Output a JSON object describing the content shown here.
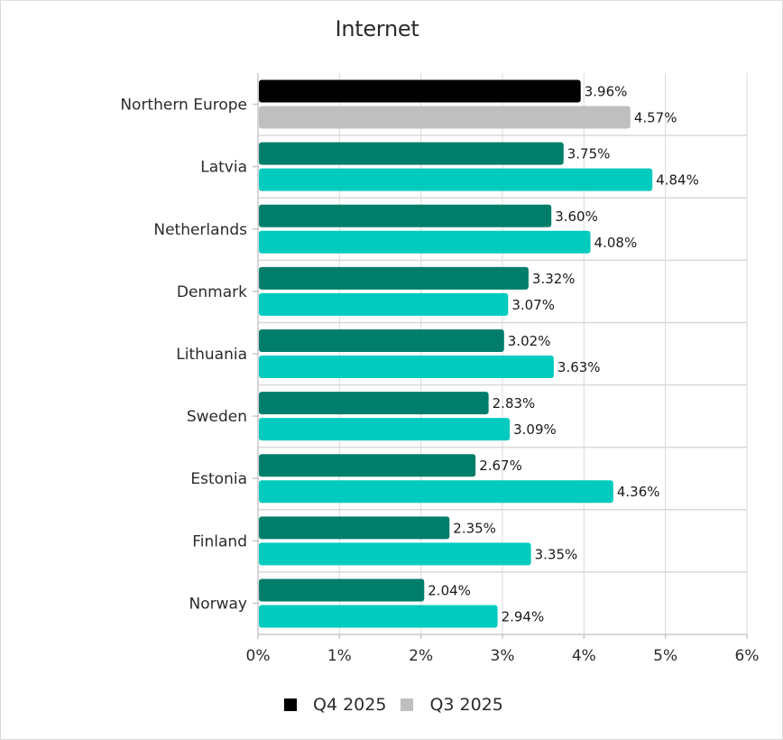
{
  "chart_data": {
    "type": "bar",
    "orientation": "horizontal",
    "title": "Internet",
    "xlabel": "",
    "ylabel": "",
    "xlim": [
      0,
      6
    ],
    "x_ticks": [
      "0%",
      "1%",
      "2%",
      "3%",
      "4%",
      "5%",
      "6%"
    ],
    "grid": true,
    "legend_position": "bottom",
    "categories": [
      "Northern Europe",
      "Latvia",
      "Netherlands",
      "Denmark",
      "Lithuania",
      "Sweden",
      "Estonia",
      "Finland",
      "Norway"
    ],
    "series": [
      {
        "name": "Q4 2025",
        "values": [
          3.96,
          3.75,
          3.6,
          3.32,
          3.02,
          2.83,
          2.67,
          2.35,
          2.04
        ],
        "labels": [
          "3.96%",
          "3.75%",
          "3.60%",
          "3.32%",
          "3.02%",
          "2.83%",
          "2.67%",
          "2.35%",
          "2.04%"
        ]
      },
      {
        "name": "Q3 2025",
        "values": [
          4.57,
          4.84,
          4.08,
          3.07,
          3.63,
          3.09,
          4.36,
          3.35,
          2.94
        ],
        "labels": [
          "4.57%",
          "4.84%",
          "4.08%",
          "3.07%",
          "3.63%",
          "3.09%",
          "4.36%",
          "3.35%",
          "2.94%"
        ]
      }
    ],
    "colors": {
      "q4_highlight": "#000000",
      "q3_highlight": "#bfbfbf",
      "q4": "#007e6b",
      "q3": "#00cbbe",
      "grid": "#d9d9d9"
    }
  },
  "legend": {
    "items": [
      {
        "label": "Q4 2025",
        "color": "#000000"
      },
      {
        "label": "Q3 2025",
        "color": "#bfbfbf"
      }
    ]
  }
}
